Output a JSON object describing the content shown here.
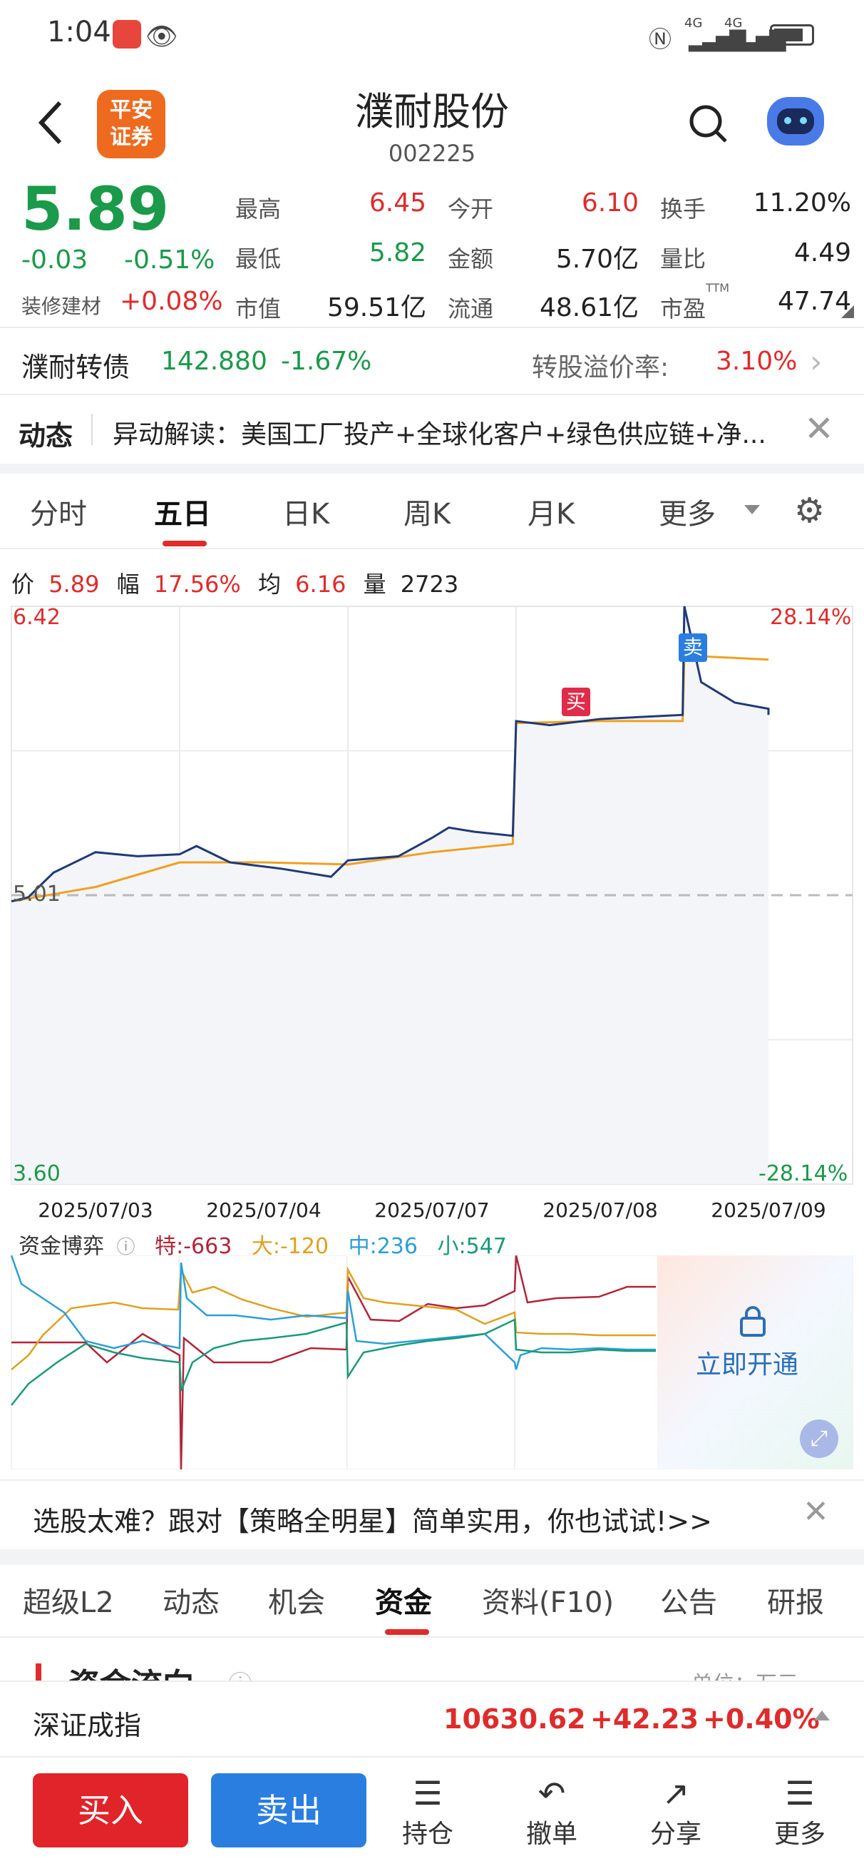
{
  "status": {
    "time": "1:04",
    "net1": "4G",
    "net2": "4G"
  },
  "header": {
    "logo_line1": "平安",
    "logo_line2": "证券",
    "name": "濮耐股份",
    "code": "002225"
  },
  "quote": {
    "price": "5.89",
    "change": "-0.03",
    "change_pct": "-0.51%",
    "sector": "装修建材",
    "sector_pct": "+0.08%",
    "high_label": "最高",
    "high": "6.45",
    "low_label": "最低",
    "low": "5.82",
    "mcap_label": "市值",
    "mcap": "59.51亿",
    "open_label": "今开",
    "open": "6.10",
    "amount_label": "金额",
    "amount": "5.70亿",
    "float_label": "流通",
    "float": "48.61亿",
    "turnover_label": "换手",
    "turnover": "11.20%",
    "vol_ratio_label": "量比",
    "vol_ratio": "4.49",
    "pe_label": "市盈",
    "pe_sup": "TTM",
    "pe": "47.74"
  },
  "bond": {
    "name": "濮耐转债",
    "price": "142.880",
    "pct": "-1.67%",
    "premium_label": "转股溢价率:",
    "premium": "3.10%"
  },
  "news": {
    "tag": "动态",
    "text": "异动解读：美国工厂投产+全球化客户+绿色供应链+净..."
  },
  "ktabs": [
    "分时",
    "五日",
    "日K",
    "周K",
    "月K",
    "更多"
  ],
  "info_row": {
    "price_label": "价",
    "price": "5.89",
    "amp_label": "幅",
    "amp": "17.56%",
    "avg_label": "均",
    "avg": "6.16",
    "vol_label": "量",
    "vol": "2723"
  },
  "chart_labels": {
    "ymax": "6.42",
    "ymin": "3.60",
    "mid": "5.01",
    "pmax": "28.14%",
    "pmin": "-28.14%",
    "buy": "买",
    "sell": "卖"
  },
  "chart_data": {
    "type": "line",
    "x": [
      "2025/07/03",
      "2025/07/04",
      "2025/07/07",
      "2025/07/08",
      "2025/07/09"
    ],
    "ylim": [
      3.6,
      6.42
    ],
    "reference": 5.01,
    "series": [
      {
        "values": [
          [
            0,
            4.98
          ],
          [
            0.1,
            5.0
          ],
          [
            0.25,
            5.12
          ],
          [
            0.5,
            5.22
          ],
          [
            0.75,
            5.2
          ],
          [
            1.0,
            5.21
          ],
          [
            1.1,
            5.25
          ],
          [
            1.3,
            5.17
          ],
          [
            1.6,
            5.14
          ],
          [
            1.9,
            5.1
          ],
          [
            2.0,
            5.18
          ],
          [
            2.3,
            5.2
          ],
          [
            2.5,
            5.29
          ],
          [
            2.6,
            5.34
          ],
          [
            2.75,
            5.32
          ],
          [
            2.98,
            5.3
          ],
          [
            3.0,
            5.86
          ],
          [
            3.2,
            5.84
          ],
          [
            3.5,
            5.87
          ],
          [
            3.99,
            5.89
          ],
          [
            4.0,
            6.42
          ],
          [
            4.1,
            6.05
          ],
          [
            4.3,
            5.95
          ],
          [
            4.5,
            5.92
          ],
          [
            4.5,
            5.89
          ]
        ]
      },
      {
        "values": [
          [
            0,
            4.98
          ],
          [
            0.5,
            5.05
          ],
          [
            1.0,
            5.17
          ],
          [
            1.5,
            5.17
          ],
          [
            2.0,
            5.16
          ],
          [
            2.5,
            5.22
          ],
          [
            2.98,
            5.26
          ],
          [
            3.0,
            5.85
          ],
          [
            3.5,
            5.86
          ],
          [
            3.99,
            5.86
          ],
          [
            4.0,
            6.18
          ],
          [
            4.5,
            6.16
          ]
        ]
      }
    ]
  },
  "flow": {
    "title": "资金博弈",
    "special": "特:-663",
    "big": "大:-120",
    "mid": "中:236",
    "small": "小:547",
    "unlock": "立即开通",
    "colors": {
      "special": "#b2243a",
      "big": "#e0a020",
      "mid": "#2a9fd6",
      "small": "#1a9a7a"
    }
  },
  "promo": {
    "text": "选股太难？跟对【策略全明星】简单实用，你也试试!>>"
  },
  "bottom_tabs": [
    "超级L2",
    "动态",
    "机会",
    "资金",
    "资料(F10)",
    "公告",
    "研报"
  ],
  "partial_section": {
    "title": "资金流向",
    "unit": "单位：万元"
  },
  "index": {
    "name": "深证成指",
    "value": "10630.62",
    "change": "+42.23",
    "pct": "+0.40%"
  },
  "actions": {
    "buy": "买入",
    "sell": "卖出",
    "hold": "持仓",
    "cancel": "撤单",
    "share": "分享",
    "more": "更多"
  }
}
